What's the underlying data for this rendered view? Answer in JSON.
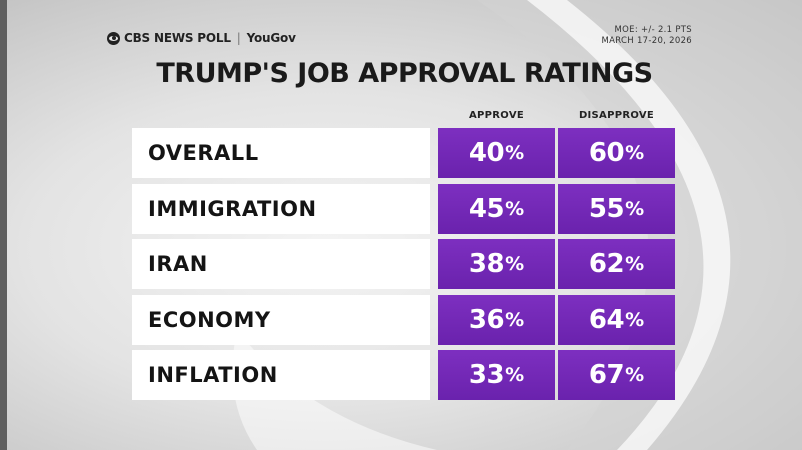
{
  "brand": {
    "network": "CBS NEWS POLL",
    "separator": "|",
    "partner": "YouGov"
  },
  "meta": {
    "moe": "MOE: +/- 2.1 PTS",
    "dates": "MARCH 17-20, 2026"
  },
  "colors": {
    "cell_purple": "#7028b3",
    "label_bg": "#ffffff"
  },
  "chart_data": {
    "type": "table",
    "title": "TRUMP'S JOB APPROVAL RATINGS",
    "columns": [
      "APPROVE",
      "DISAPPROVE"
    ],
    "unit": "%",
    "rows": [
      {
        "label": "OVERALL",
        "approve": 40,
        "disapprove": 60
      },
      {
        "label": "IMMIGRATION",
        "approve": 45,
        "disapprove": 55
      },
      {
        "label": "IRAN",
        "approve": 38,
        "disapprove": 62
      },
      {
        "label": "ECONOMY",
        "approve": 36,
        "disapprove": 64
      },
      {
        "label": "INFLATION",
        "approve": 33,
        "disapprove": 67
      }
    ]
  }
}
